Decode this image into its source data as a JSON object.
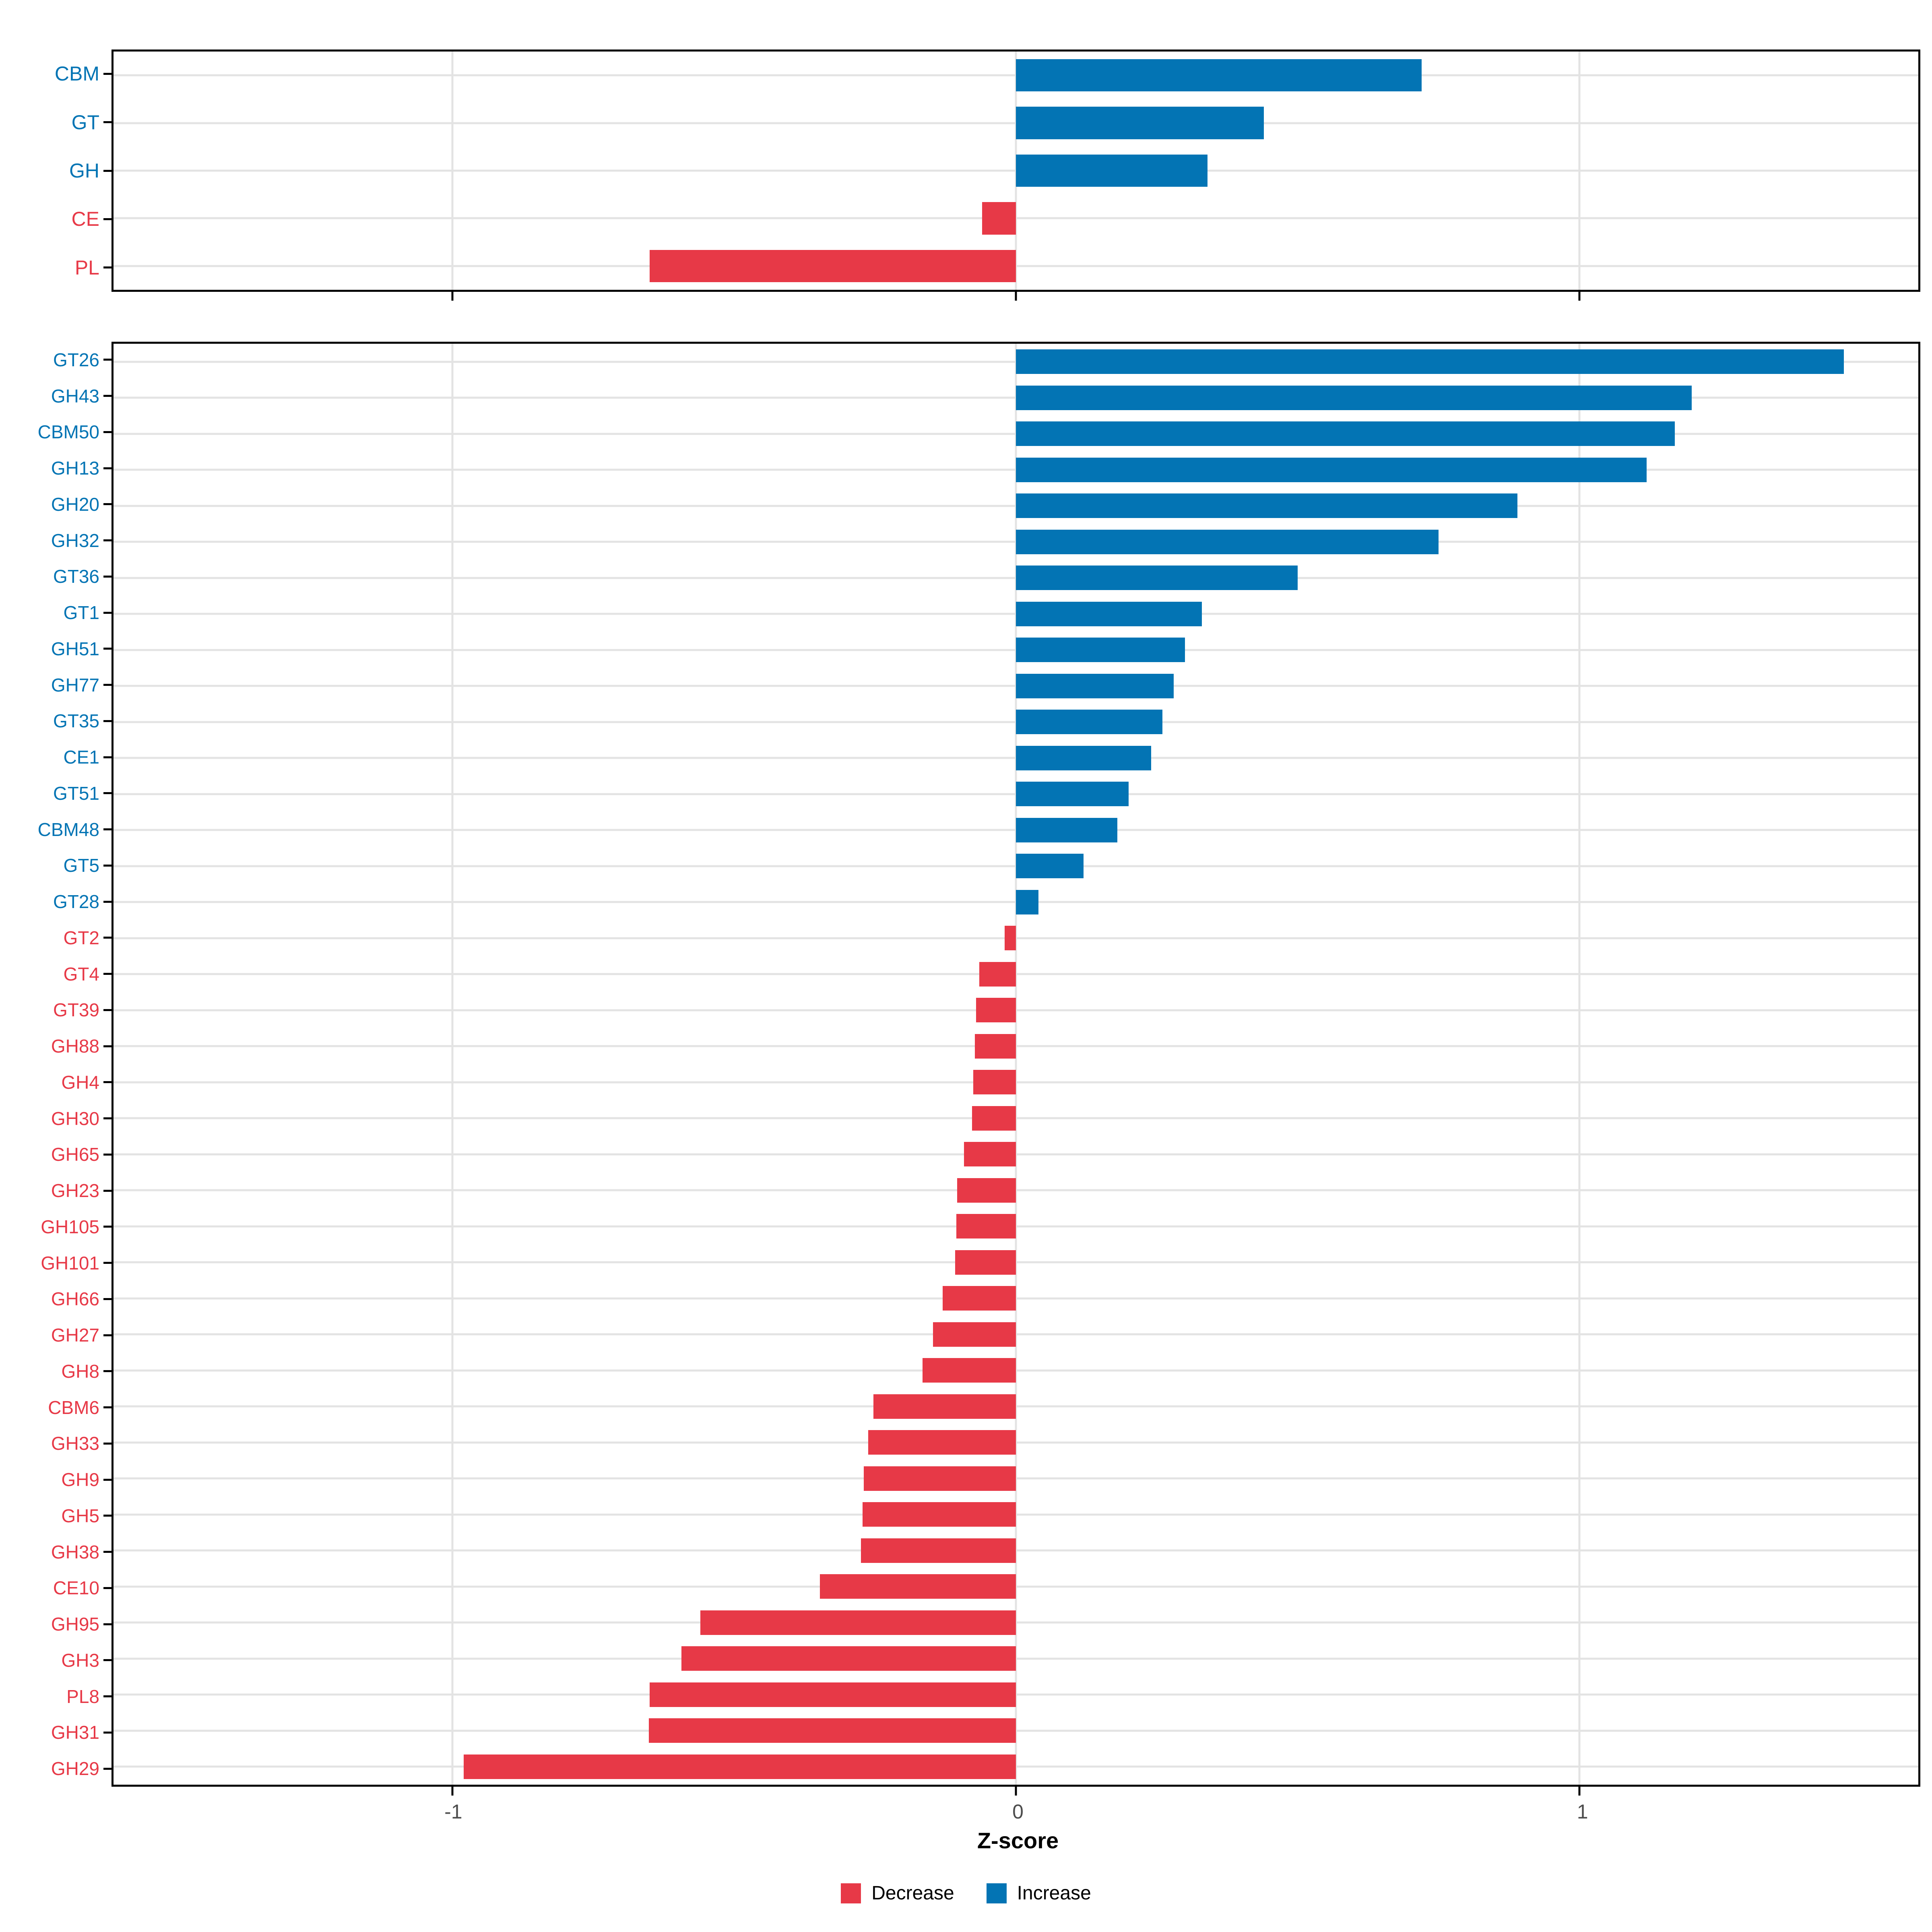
{
  "colors": {
    "increase": "#0374B4",
    "decrease": "#E73947",
    "grid": "#E3E3E3",
    "panel_border": "#000000",
    "axis_tick_text": "#4D4D4D"
  },
  "axis": {
    "title": "Z-score",
    "xlim": [
      -1.602,
      1.602
    ],
    "ticks": [
      -1,
      0,
      1
    ],
    "tick_labels": [
      "-1",
      "0",
      "1"
    ],
    "grid_on": true
  },
  "legend": {
    "position": "bottom-center",
    "items": [
      {
        "label": "Decrease",
        "color_key": "decrease"
      },
      {
        "label": "Increase",
        "color_key": "increase"
      }
    ]
  },
  "chart_data": [
    {
      "type": "bar",
      "orientation": "horizontal",
      "panel": "top",
      "title": "",
      "xlabel": "Z-score",
      "xlim": [
        -1.602,
        1.602
      ],
      "categories": [
        "CBM",
        "GT",
        "GH",
        "CE",
        "PL"
      ],
      "values": [
        0.72,
        0.44,
        0.34,
        -0.06,
        -0.65
      ],
      "series_note": "bars colored by sign: positive = Increase (blue), negative = Decrease (red)"
    },
    {
      "type": "bar",
      "orientation": "horizontal",
      "panel": "bottom",
      "title": "",
      "xlabel": "Z-score",
      "xlim": [
        -1.602,
        1.602
      ],
      "categories": [
        "GT26",
        "GH43",
        "CBM50",
        "GH13",
        "GH20",
        "GH32",
        "GT36",
        "GT1",
        "GH51",
        "GH77",
        "GT35",
        "CE1",
        "GT51",
        "CBM48",
        "GT5",
        "GT28",
        "GT2",
        "GT4",
        "GT39",
        "GH88",
        "GH4",
        "GH30",
        "GH65",
        "GH23",
        "GH105",
        "GH101",
        "GH66",
        "GH27",
        "GH8",
        "CBM6",
        "GH33",
        "GH9",
        "GH5",
        "GH38",
        "CE10",
        "GH95",
        "GH3",
        "PL8",
        "GH31",
        "GH29"
      ],
      "values": [
        1.47,
        1.2,
        1.17,
        1.12,
        0.89,
        0.75,
        0.5,
        0.33,
        0.3,
        0.28,
        0.26,
        0.24,
        0.2,
        0.18,
        0.12,
        0.04,
        -0.02,
        -0.065,
        -0.071,
        -0.073,
        -0.076,
        -0.078,
        -0.092,
        -0.104,
        -0.106,
        -0.108,
        -0.13,
        -0.147,
        -0.166,
        -0.253,
        -0.262,
        -0.27,
        -0.272,
        -0.275,
        -0.348,
        -0.56,
        -0.594,
        -0.65,
        -0.652,
        -0.98
      ],
      "series_note": "bars colored by sign: positive = Increase (blue), negative = Decrease (red)"
    }
  ]
}
